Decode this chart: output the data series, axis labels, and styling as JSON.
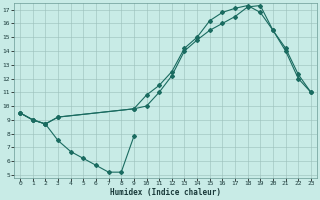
{
  "xlabel": "Humidex (Indice chaleur)",
  "bg_color": "#c8ebe6",
  "grid_color": "#9bbfba",
  "line_color": "#1a6b60",
  "xlim": [
    -0.5,
    23.5
  ],
  "ylim": [
    4.8,
    17.5
  ],
  "xticks": [
    0,
    1,
    2,
    3,
    4,
    5,
    6,
    7,
    8,
    9,
    10,
    11,
    12,
    13,
    14,
    15,
    16,
    17,
    18,
    19,
    20,
    21,
    22,
    23
  ],
  "yticks": [
    5,
    6,
    7,
    8,
    9,
    10,
    11,
    12,
    13,
    14,
    15,
    16,
    17
  ],
  "line1": {
    "x": [
      0,
      1,
      2,
      3,
      9,
      10,
      11,
      12,
      13,
      14,
      15,
      16,
      17,
      18,
      19,
      20,
      21,
      22,
      23
    ],
    "y": [
      9.5,
      9.0,
      8.7,
      9.2,
      9.8,
      10.8,
      11.5,
      12.5,
      14.2,
      15.0,
      16.2,
      16.8,
      17.1,
      17.3,
      16.8,
      15.5,
      14.2,
      12.3,
      11.0
    ]
  },
  "line2": {
    "x": [
      0,
      1,
      2,
      3,
      9,
      10,
      11,
      12,
      13,
      14,
      15,
      16,
      17,
      18,
      19,
      20,
      21,
      22,
      23
    ],
    "y": [
      9.5,
      9.0,
      8.7,
      9.2,
      9.8,
      10.0,
      11.0,
      12.2,
      14.0,
      14.8,
      15.5,
      16.0,
      16.5,
      17.2,
      17.3,
      15.5,
      14.0,
      12.0,
      11.0
    ]
  },
  "line3": {
    "x": [
      0,
      1,
      2,
      3,
      4,
      5,
      6,
      7,
      8,
      9
    ],
    "y": [
      9.5,
      9.0,
      8.7,
      7.5,
      6.7,
      6.2,
      5.7,
      5.2,
      5.2,
      7.8
    ]
  }
}
